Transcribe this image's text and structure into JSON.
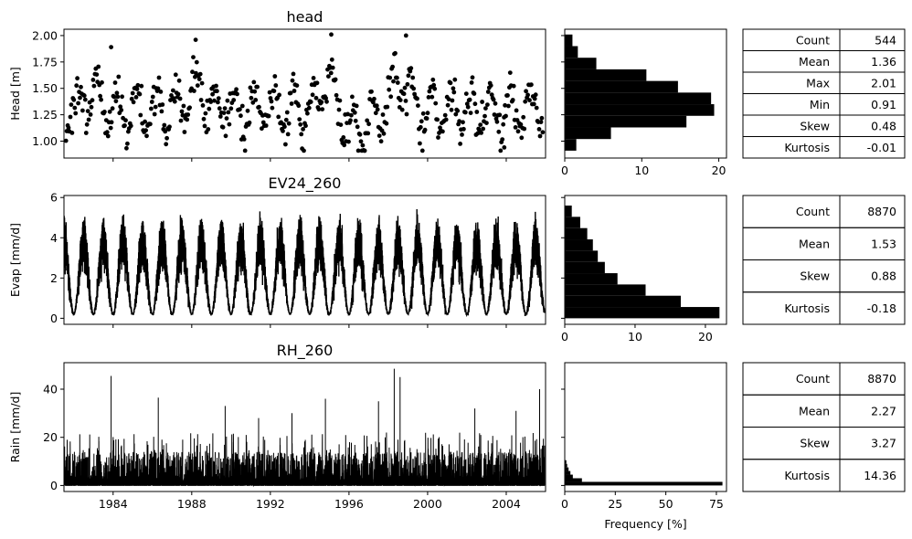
{
  "colors": {
    "ink": "#000000",
    "background": "#ffffff"
  },
  "chart_data": [
    {
      "type": "scatter",
      "title": "head",
      "ylabel": "Head [m]",
      "xlabel": "",
      "x_range": [
        1981.5,
        2006.0
      ],
      "ylim": [
        0.84,
        2.06
      ],
      "y_ticks": [
        1.0,
        1.25,
        1.5,
        1.75,
        2.0
      ],
      "y_tick_labels": [
        "1.00",
        "1.25",
        "1.50",
        "1.75",
        "2.00"
      ],
      "x_ticks": [
        1984,
        1988,
        1992,
        1996,
        2000,
        2004
      ],
      "x_tick_labels_visible": false,
      "x_tick_labels": [
        "1984",
        "1988",
        "1992",
        "1996",
        "2000",
        "2004"
      ],
      "grid": false,
      "seasonal_model": {
        "start_year": 1981.6,
        "end_year": 2005.9,
        "samples": 544,
        "base": 1.3,
        "seasonal_amplitude": 0.2,
        "noise": 0.09,
        "peaks": [
          {
            "center": 1983.0,
            "width": 0.5,
            "height": 0.12
          },
          {
            "center": 1988.2,
            "width": 0.6,
            "height": 0.2
          },
          {
            "center": 1995.0,
            "width": 0.6,
            "height": 0.28
          },
          {
            "center": 1998.6,
            "width": 0.6,
            "height": 0.25
          },
          {
            "center": 1996.4,
            "width": 0.8,
            "height": -0.22
          }
        ],
        "highlight_points": [
          {
            "x": 1995.1,
            "y": 2.01
          },
          {
            "x": 1998.9,
            "y": 2.0
          },
          {
            "x": 1988.2,
            "y": 1.96
          },
          {
            "x": 1983.9,
            "y": 1.89
          },
          {
            "x": 1996.8,
            "y": 0.91
          },
          {
            "x": 2003.9,
            "y": 0.94
          }
        ]
      },
      "histogram": {
        "orientation": "horizontal",
        "bin_edges": [
          0.91,
          1.02,
          1.13,
          1.24,
          1.35,
          1.46,
          1.57,
          1.68,
          1.79,
          1.9,
          2.01
        ],
        "frequency_percent": [
          1.5,
          6.0,
          15.8,
          19.4,
          19.0,
          14.7,
          10.6,
          4.1,
          1.7,
          1.0
        ],
        "xlim": [
          0,
          21
        ],
        "x_ticks": [
          0,
          10,
          20
        ],
        "x_tick_labels": [
          "0",
          "10",
          "20"
        ]
      },
      "stats": [
        {
          "label": "Count",
          "value": "544"
        },
        {
          "label": "Mean",
          "value": "1.36"
        },
        {
          "label": "Max",
          "value": "2.01"
        },
        {
          "label": "Min",
          "value": "0.91"
        },
        {
          "label": "Skew",
          "value": "0.48"
        },
        {
          "label": "Kurtosis",
          "value": "-0.01"
        }
      ]
    },
    {
      "type": "line",
      "title": "EV24_260",
      "ylabel": "Evap [mm/d]",
      "xlabel": "",
      "x_range": [
        1981.5,
        2006.0
      ],
      "ylim": [
        -0.3,
        6.1
      ],
      "y_ticks": [
        0,
        2,
        4,
        6
      ],
      "y_tick_labels": [
        "0",
        "2",
        "4",
        "6"
      ],
      "x_ticks": [
        1984,
        1988,
        1992,
        1996,
        2000,
        2004
      ],
      "x_tick_labels_visible": false,
      "x_tick_labels": [
        "1984",
        "1988",
        "1992",
        "1996",
        "2000",
        "2004"
      ],
      "grid": false,
      "seasonal_model": {
        "start_year": 1981.5,
        "end_year": 2005.95,
        "samples_per_year": 365,
        "base": 0.2,
        "seasonal_peak": 4.6,
        "noise": 0.9,
        "peak_phase_year_fraction": 0.5,
        "max_value": 5.6
      },
      "histogram": {
        "orientation": "horizontal",
        "bin_edges": [
          0.0,
          0.56,
          1.12,
          1.68,
          2.24,
          2.8,
          3.36,
          3.92,
          4.48,
          5.04,
          5.6
        ],
        "frequency_percent": [
          22.0,
          16.5,
          11.5,
          7.5,
          5.7,
          4.7,
          4.0,
          3.2,
          2.2,
          1.0
        ],
        "xlim": [
          0,
          23
        ],
        "x_ticks": [
          0,
          10,
          20
        ],
        "x_tick_labels": [
          "0",
          "10",
          "20"
        ]
      },
      "stats": [
        {
          "label": "Count",
          "value": "8870"
        },
        {
          "label": "Mean",
          "value": "1.53"
        },
        {
          "label": "Skew",
          "value": "0.88"
        },
        {
          "label": "Kurtosis",
          "value": "-0.18"
        }
      ]
    },
    {
      "type": "line",
      "title": "RH_260",
      "ylabel": "Rain [mm/d]",
      "xlabel": "",
      "x_range": [
        1981.5,
        2006.0
      ],
      "ylim": [
        -2.5,
        51
      ],
      "y_ticks": [
        0,
        20,
        40
      ],
      "y_tick_labels": [
        "0",
        "20",
        "40"
      ],
      "x_ticks": [
        1984,
        1988,
        1992,
        1996,
        2000,
        2004
      ],
      "x_tick_labels_visible": true,
      "x_tick_labels": [
        "1984",
        "1988",
        "1992",
        "1996",
        "2000",
        "2004"
      ],
      "grid": false,
      "spike_model": {
        "start_year": 1981.5,
        "end_year": 2005.95,
        "samples_per_year": 365,
        "wet_day_fraction": 0.52,
        "typical_max": 22,
        "large_events": [
          {
            "x": 1983.9,
            "y": 45.5
          },
          {
            "x": 1998.3,
            "y": 48.5
          },
          {
            "x": 1998.6,
            "y": 45.0
          },
          {
            "x": 2005.7,
            "y": 40.0
          },
          {
            "x": 1986.3,
            "y": 36.5
          },
          {
            "x": 1994.8,
            "y": 36.0
          },
          {
            "x": 1997.5,
            "y": 35.0
          },
          {
            "x": 1989.7,
            "y": 33.0
          },
          {
            "x": 2002.4,
            "y": 32.0
          },
          {
            "x": 2004.5,
            "y": 31.0
          },
          {
            "x": 1993.1,
            "y": 30.0
          },
          {
            "x": 1991.4,
            "y": 28.0
          }
        ]
      },
      "histogram": {
        "orientation": "horizontal",
        "bin_edges": [
          0.0,
          1.5,
          3.0,
          4.5,
          6.0,
          7.5,
          9.0,
          10.5
        ],
        "frequency_percent": [
          78.0,
          8.5,
          4.0,
          2.8,
          1.9,
          1.2,
          0.8
        ],
        "xlim": [
          0,
          80
        ],
        "x_ticks": [
          0,
          25,
          50,
          75
        ],
        "x_tick_labels": [
          "0",
          "25",
          "50",
          "75"
        ],
        "xlabel": "Frequency [%]"
      },
      "stats": [
        {
          "label": "Count",
          "value": "8870"
        },
        {
          "label": "Mean",
          "value": "2.27"
        },
        {
          "label": "Skew",
          "value": "3.27"
        },
        {
          "label": "Kurtosis",
          "value": "14.36"
        }
      ]
    }
  ]
}
